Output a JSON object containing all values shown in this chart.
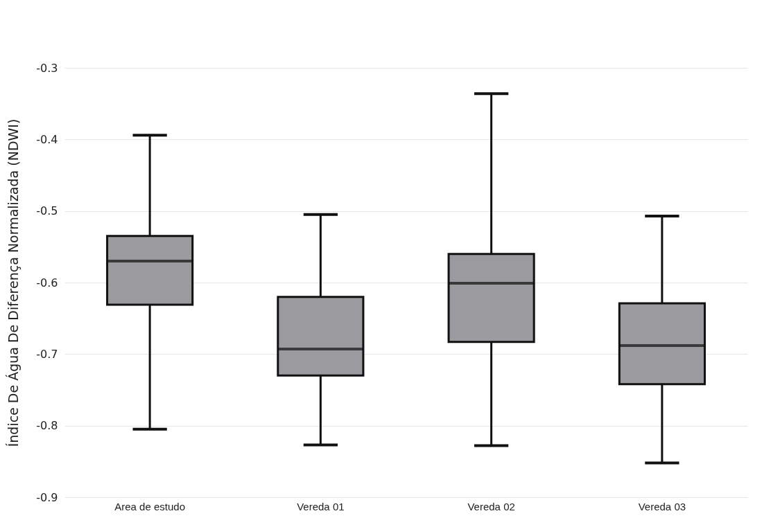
{
  "chart_data": {
    "type": "box",
    "ylabel": "Índice De Água De Diferença Normalizada (NDWI)",
    "categories": [
      "Area de estudo",
      "Vereda 01",
      "Vereda 02",
      "Vereda 03"
    ],
    "series": [
      {
        "color": "#9a9a9f",
        "boxes": [
          {
            "low": -0.805,
            "q1": -0.631,
            "median": -0.57,
            "q3": -0.535,
            "high": -0.394
          },
          {
            "low": -0.827,
            "q1": -0.73,
            "median": -0.693,
            "q3": -0.62,
            "high": -0.505
          },
          {
            "low": -0.828,
            "q1": -0.683,
            "median": -0.601,
            "q3": -0.56,
            "high": -0.336
          },
          {
            "low": -0.852,
            "q1": -0.742,
            "median": -0.688,
            "q3": -0.629,
            "high": -0.507
          }
        ]
      }
    ],
    "ylim": [
      -0.9,
      -0.3
    ],
    "yticks": [
      -0.9,
      -0.8,
      -0.7,
      -0.6,
      -0.5,
      -0.4,
      -0.3
    ],
    "grid": "y"
  }
}
